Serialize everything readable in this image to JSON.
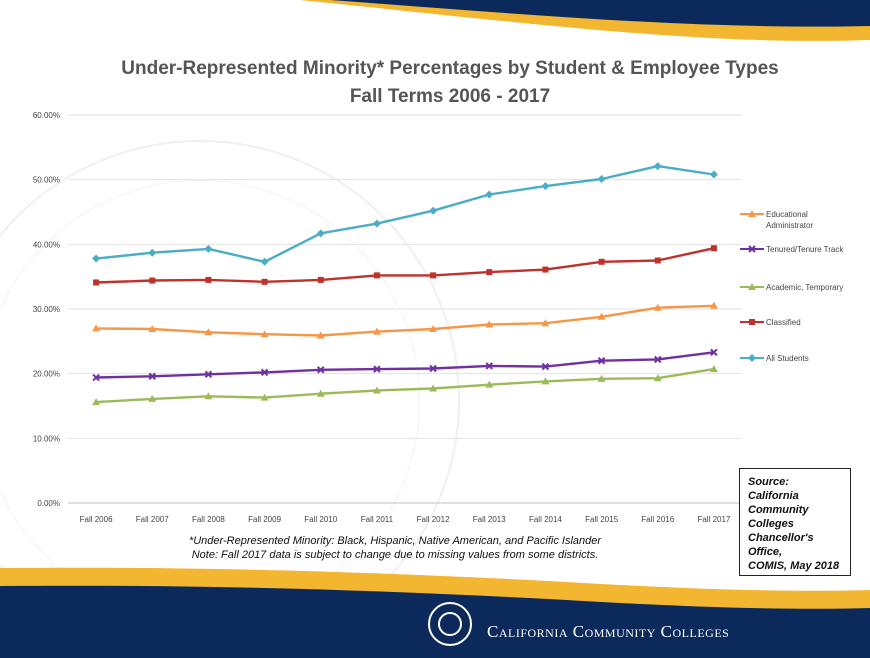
{
  "chart_data": {
    "type": "line",
    "title": "Under-Represented Minority* Percentages by Student & Employee Types",
    "subtitle": "Fall Terms 2006 - 2017",
    "xlabel": "",
    "ylabel": "",
    "categories": [
      "Fall 2006",
      "Fall 2007",
      "Fall 2008",
      "Fall 2009",
      "Fall 2010",
      "Fall 2011",
      "Fall 2012",
      "Fall 2013",
      "Fall 2014",
      "Fall 2015",
      "Fall 2016",
      "Fall 2017"
    ],
    "ylim": [
      0,
      60
    ],
    "yticks": [
      "0.00%",
      "10.00%",
      "20.00%",
      "30.00%",
      "40.00%",
      "50.00%",
      "60.00%"
    ],
    "grid": true,
    "legend_position": "right",
    "series": [
      {
        "name": "Educational Administrator",
        "color": "#f79646",
        "marker": "triangle",
        "values": [
          27.0,
          26.9,
          26.4,
          26.1,
          25.9,
          26.5,
          26.9,
          27.6,
          27.8,
          28.8,
          30.2,
          30.5
        ]
      },
      {
        "name": "Tenured/Tenure Track",
        "color": "#7030a0",
        "marker": "cross",
        "values": [
          19.4,
          19.6,
          19.9,
          20.2,
          20.6,
          20.7,
          20.8,
          21.2,
          21.1,
          22.0,
          22.2,
          23.3
        ]
      },
      {
        "name": "Academic, Temporary",
        "color": "#9bbb59",
        "marker": "triangle",
        "values": [
          15.6,
          16.1,
          16.5,
          16.3,
          16.9,
          17.4,
          17.7,
          18.3,
          18.8,
          19.2,
          19.3,
          20.7
        ]
      },
      {
        "name": "Classified",
        "color": "#c0312b",
        "marker": "square",
        "values": [
          34.1,
          34.4,
          34.5,
          34.2,
          34.5,
          35.2,
          35.2,
          35.7,
          36.1,
          37.3,
          37.5,
          39.4
        ]
      },
      {
        "name": "All Students",
        "color": "#4bacc6",
        "marker": "diamond",
        "values": [
          37.8,
          38.7,
          39.3,
          37.3,
          41.7,
          43.2,
          45.2,
          47.7,
          49.0,
          50.1,
          52.1,
          50.8
        ]
      }
    ]
  },
  "legend_lines": [
    [
      "Educational",
      "Administrator"
    ],
    [
      "Tenured/Tenure Track"
    ],
    [
      "Academic, Temporary"
    ],
    [
      "Classified"
    ],
    [
      "All Students"
    ]
  ],
  "footnotes": {
    "line1": "*Under-Represented Minority: Black, Hispanic, Native American, and Pacific Islander",
    "line2": "Note: Fall 2017 data is subject to change due to missing values from some districts."
  },
  "source": {
    "lines": [
      "Source: California",
      "Community",
      "Colleges",
      "Chancellor's",
      "Office,",
      "COMIS, May 2018"
    ]
  },
  "footer": {
    "brand": "California Community Colleges",
    "navy": "#0b2a5b",
    "gold": "#f2b631"
  }
}
